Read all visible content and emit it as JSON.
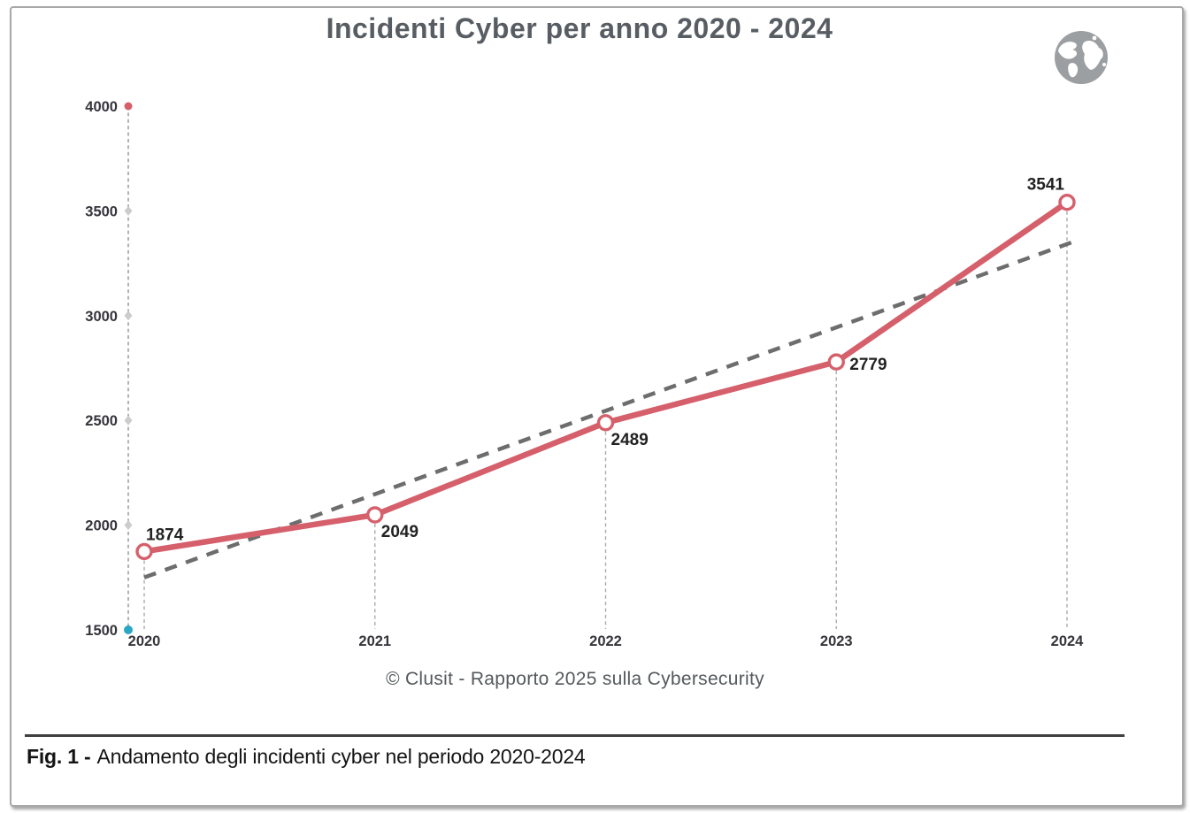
{
  "page": {
    "title": "Incidenti Cyber per anno 2020 - 2024",
    "source_caption": "© Clusit - Rapporto 2025 sulla Cybersecurity",
    "figure_caption_prefix": "Fig. 1 -",
    "figure_caption_text": "Andamento degli incidenti cyber nel periodo 2020-2024"
  },
  "icons": {
    "globe": "globe-icon"
  },
  "colors": {
    "series_line": "#d5606b",
    "marker_fill": "#ffffff",
    "trend_line": "#6d6d6d",
    "axis_line": "#a0a0a0",
    "drop_line": "#ababab",
    "tick_diamond": "#cccccc",
    "axis_top_dot": "#d5606b",
    "axis_bottom_dot": "#2ba7c4",
    "tick_label": "#35353b",
    "data_label": "#222222",
    "title_text": "#575d63",
    "caption_text": "#54595c",
    "figure_text": "#141414",
    "divider": "#3f3f3f",
    "globe": "#9b9fa2"
  },
  "chart_data": {
    "type": "line",
    "title": "Incidenti Cyber per anno 2020 - 2024",
    "categories": [
      "2020",
      "2021",
      "2022",
      "2023",
      "2024"
    ],
    "series": [
      {
        "name": "Incidenti cyber",
        "values": [
          1874,
          2049,
          2489,
          2779,
          3541
        ]
      }
    ],
    "trendline": {
      "style": "dashed",
      "start_value": 1750,
      "end_value": 3360
    },
    "ylim": [
      1500,
      4000
    ],
    "yticks": [
      1500,
      2000,
      2500,
      3000,
      3500,
      4000
    ],
    "xlabel": "",
    "ylabel": "",
    "grid": false,
    "legend": "none",
    "data_labels": true
  }
}
